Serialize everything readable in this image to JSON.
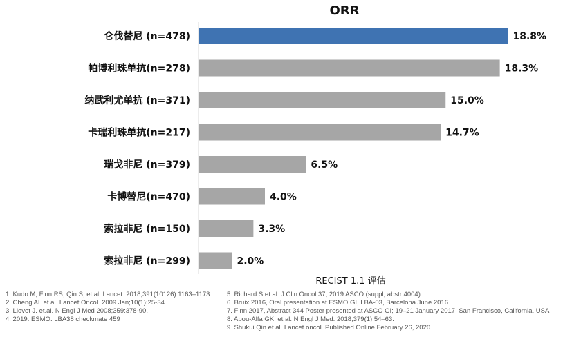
{
  "chart_data": {
    "type": "bar",
    "orientation": "horizontal",
    "title": "ORR",
    "xlabel": "RECIST 1.1 评估",
    "categories": [
      "仑伐替尼 (n=478)",
      "帕博利珠单抗(n=278)",
      "纳武利尤单抗 (n=371)",
      "卡瑞利珠单抗(n=217)",
      "瑞戈非尼 (n=379)",
      "卡博替尼(n=470)",
      "索拉非尼 (n=150)",
      "索拉非尼 (n=299)"
    ],
    "values": [
      18.8,
      18.3,
      15.0,
      14.7,
      6.5,
      4.0,
      3.3,
      2.0
    ],
    "value_labels": [
      "18.8%",
      "18.3%",
      "15.0%",
      "14.7%",
      "6.5%",
      "4.0%",
      "3.3%",
      "2.0%"
    ],
    "highlight_color": "#3f73b2",
    "bar_color": "#a6a6a6",
    "xlim": [
      0,
      20
    ],
    "grid": false,
    "legend": "none"
  },
  "references_left": [
    "1.    Kudo M, Finn RS, Qin S, et al. Lancet. 2018;391(10126):1163–1173.",
    "2.    Cheng AL et.al. Lancet Oncol. 2009 Jan;10(1):25-34.",
    "3.    Llovet J. et.al. N Engl J Med 2008;359:378-90.",
    "4.    2019. ESMO. LBA38 checkmate 459"
  ],
  "references_right": [
    "5. Richard S et al. J Clin Oncol 37, 2019  ASCO (suppl; abstr 4004).",
    "6. Bruix 2016, Oral presentation at ESMO GI, LBA-03, Barcelona June 2016.",
    "7. Finn 2017, Abstract 344 Poster presented at  ASCO GI; 19–21 January 2017, San Francisco, California, USA",
    "8. Abou-Alfa GK, et al. N Engl J Med. 2018;379(1):54–63.",
    "9. Shukui Qin et al. Lancet oncol. Published Online February 26, 2020"
  ]
}
